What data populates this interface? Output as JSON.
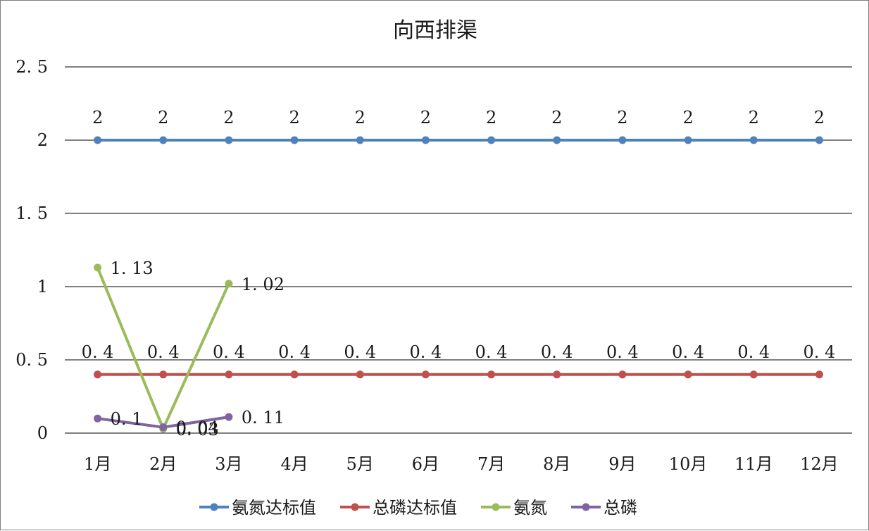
{
  "chart_data": {
    "type": "line",
    "title": "向西排渠",
    "categories": [
      "1月",
      "2月",
      "3月",
      "4月",
      "5月",
      "6月",
      "7月",
      "8月",
      "9月",
      "10月",
      "11月",
      "12月"
    ],
    "y_ticks": [
      "0",
      "0. 5",
      "1",
      "1. 5",
      "2",
      "2. 5"
    ],
    "ylim": [
      0,
      2.5
    ],
    "grid": true,
    "legend_position": "bottom",
    "series": [
      {
        "name": "氨氮达标值",
        "color": "#4f81bd",
        "values": [
          2,
          2,
          2,
          2,
          2,
          2,
          2,
          2,
          2,
          2,
          2,
          2
        ],
        "labels": [
          "2",
          "2",
          "2",
          "2",
          "2",
          "2",
          "2",
          "2",
          "2",
          "2",
          "2",
          "2"
        ],
        "label_position": "above"
      },
      {
        "name": "总磷达标值",
        "color": "#c0504d",
        "values": [
          0.4,
          0.4,
          0.4,
          0.4,
          0.4,
          0.4,
          0.4,
          0.4,
          0.4,
          0.4,
          0.4,
          0.4
        ],
        "labels": [
          "0. 4",
          "0. 4",
          "0. 4",
          "0. 4",
          "0. 4",
          "0. 4",
          "0. 4",
          "0. 4",
          "0. 4",
          "0. 4",
          "0. 4",
          "0. 4"
        ],
        "label_position": "above"
      },
      {
        "name": "氨氮",
        "color": "#9bbb59",
        "values": [
          1.13,
          0.03,
          1.02,
          null,
          null,
          null,
          null,
          null,
          null,
          null,
          null,
          null
        ],
        "labels": [
          "1. 13",
          "0. 03",
          "1. 02"
        ],
        "label_position": "right"
      },
      {
        "name": "总磷",
        "color": "#8064a2",
        "values": [
          0.1,
          0.04,
          0.11,
          null,
          null,
          null,
          null,
          null,
          null,
          null,
          null,
          null
        ],
        "labels": [
          "0. 1",
          "0. 04",
          "0. 11"
        ],
        "label_position": "right"
      }
    ]
  }
}
